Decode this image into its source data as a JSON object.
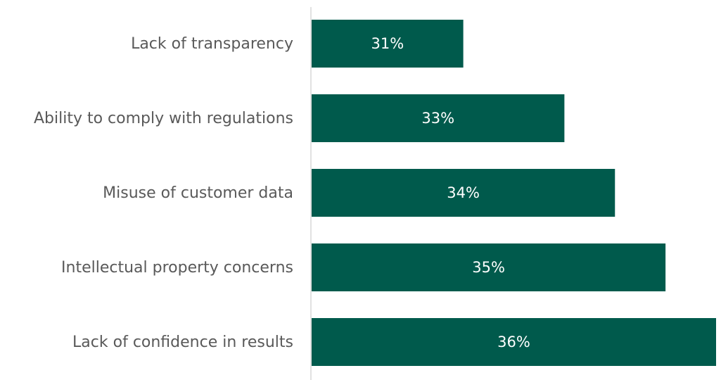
{
  "chart_data": {
    "type": "bar",
    "orientation": "horizontal",
    "categories": [
      "Lack of transparency",
      "Ability to comply with regulations",
      "Misuse of customer data",
      "Intellectual property concerns",
      "Lack of confidence in results"
    ],
    "values": [
      31,
      33,
      34,
      35,
      36
    ],
    "value_labels": [
      "31%",
      "33%",
      "34%",
      "35%",
      "36%"
    ],
    "color": "#005a4c",
    "xlim": [
      28,
      36
    ]
  }
}
